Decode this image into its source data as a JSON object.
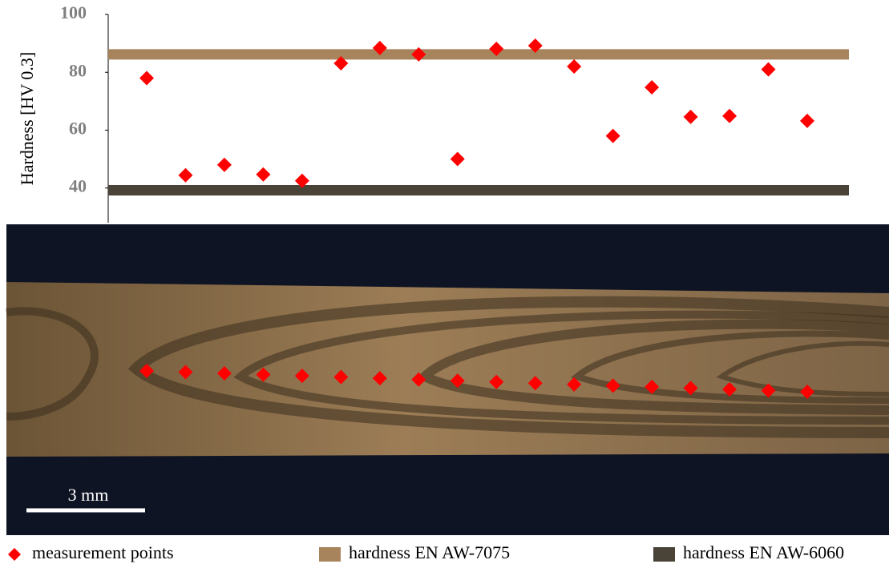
{
  "chart_data": {
    "type": "scatter",
    "y_label": "Hardness [HV 0.3]",
    "ylim": [
      28,
      100
    ],
    "yticks": [
      40,
      60,
      80,
      100
    ],
    "series": [
      {
        "name": "measurement points",
        "color": "#ff0000",
        "values": [
          78,
          44.4,
          48,
          44.7,
          42.5,
          83.1,
          88.4,
          86.2,
          50,
          88.1,
          89.2,
          82,
          58,
          74.8,
          64.6,
          64.9,
          81,
          63.2
        ]
      }
    ],
    "reference_lines": [
      {
        "name": "hardness EN AW-7075",
        "color": "#a8845c",
        "value": 86.2
      },
      {
        "name": "hardness EN AW-6060",
        "color": "#4a4438",
        "value": 39.2
      }
    ],
    "scale_bar": "3 mm"
  }
}
